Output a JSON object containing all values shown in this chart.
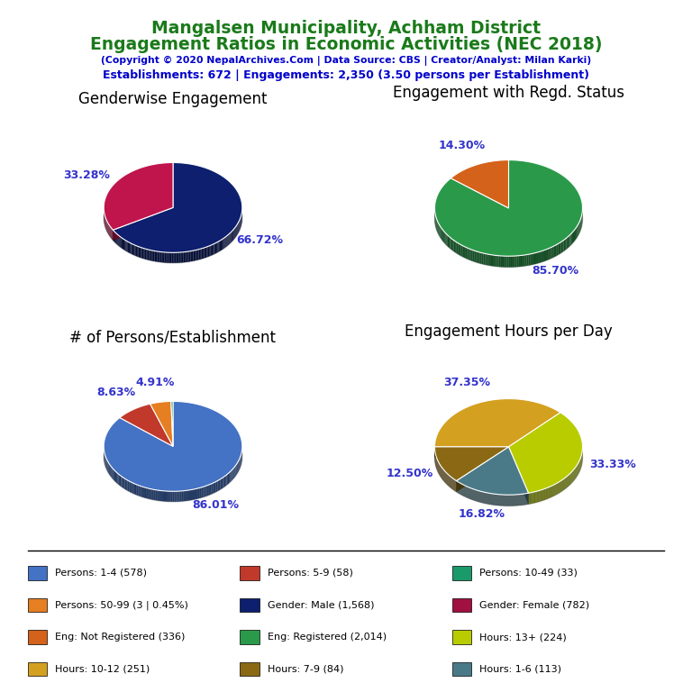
{
  "title_line1": "Mangalsen Municipality, Achham District",
  "title_line2": "Engagement Ratios in Economic Activities (NEC 2018)",
  "subtitle": "(Copyright © 2020 NepalArchives.Com | Data Source: CBS | Creator/Analyst: Milan Karki)",
  "stats_line": "Establishments: 672 | Engagements: 2,350 (3.50 persons per Establishment)",
  "title_color": "#1a7a1a",
  "subtitle_color": "#0000cc",
  "stats_color": "#0000cc",
  "pie1_title": "Genderwise Engagement",
  "pie1_values": [
    66.72,
    33.28
  ],
  "pie1_colors": [
    "#0d1f6e",
    "#c0144c"
  ],
  "pie1_labels": [
    "66.72%",
    "33.28%"
  ],
  "pie1_startangle": 90,
  "pie2_title": "Engagement with Regd. Status",
  "pie2_values": [
    85.7,
    14.3
  ],
  "pie2_colors": [
    "#2a9a4a",
    "#d4621a"
  ],
  "pie2_labels": [
    "85.70%",
    "14.30%"
  ],
  "pie2_startangle": 90,
  "pie3_title": "# of Persons/Establishment",
  "pie3_values": [
    86.01,
    8.63,
    4.91,
    0.45
  ],
  "pie3_colors": [
    "#4472c4",
    "#c0392b",
    "#e67e22",
    "#1a9a6a"
  ],
  "pie3_labels": [
    "86.01%",
    "8.63%",
    "4.91%",
    ""
  ],
  "pie3_startangle": 90,
  "pie4_title": "Engagement Hours per Day",
  "pie4_values": [
    37.35,
    33.33,
    16.82,
    12.5
  ],
  "pie4_colors": [
    "#d4a020",
    "#b8cc00",
    "#4a7a88",
    "#8b6914"
  ],
  "pie4_labels": [
    "37.35%",
    "33.33%",
    "16.82%",
    "12.50%"
  ],
  "pie4_startangle": 180,
  "label_color": "#3333cc",
  "legend_items": [
    {
      "label": "Persons: 1-4 (578)",
      "color": "#4472c4"
    },
    {
      "label": "Persons: 5-9 (58)",
      "color": "#c0392b"
    },
    {
      "label": "Persons: 10-49 (33)",
      "color": "#1a9a6a"
    },
    {
      "label": "Persons: 50-99 (3 | 0.45%)",
      "color": "#e67e22"
    },
    {
      "label": "Gender: Male (1,568)",
      "color": "#0d1f6e"
    },
    {
      "label": "Gender: Female (782)",
      "color": "#a01040"
    },
    {
      "label": "Eng: Not Registered (336)",
      "color": "#d4621a"
    },
    {
      "label": "Eng: Registered (2,014)",
      "color": "#2a9a4a"
    },
    {
      "label": "Hours: 13+ (224)",
      "color": "#b8cc00"
    },
    {
      "label": "Hours: 10-12 (251)",
      "color": "#d4a020"
    },
    {
      "label": "Hours: 7-9 (84)",
      "color": "#8b6914"
    },
    {
      "label": "Hours: 1-6 (113)",
      "color": "#4a7a88"
    }
  ]
}
